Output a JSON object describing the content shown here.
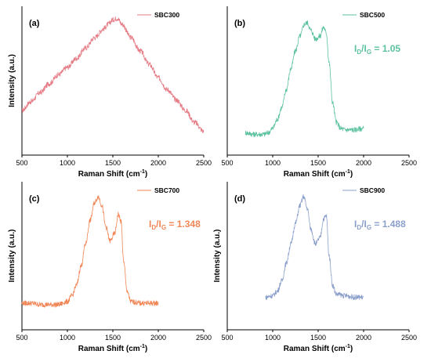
{
  "chart_data": [
    {
      "type": "line",
      "panel_label": "(a)",
      "xlabel": "Raman Shift (cm",
      "xlabel_sup": "-1",
      "xlabel_end": ")",
      "ylabel": "Intensity (a.u.)",
      "xlim": [
        500,
        2500
      ],
      "xticks": [
        "500",
        "1000",
        "1500",
        "2000",
        "2500"
      ],
      "ylim": [
        0,
        1
      ],
      "color": "#e57b85",
      "legend": "SBC300",
      "legend_position": "top-right",
      "ratio": null,
      "series": [
        {
          "x": [
            500,
            600,
            700,
            800,
            900,
            1000,
            1100,
            1200,
            1300,
            1400,
            1450,
            1500,
            1550,
            1600,
            1700,
            1800,
            1900,
            2000,
            2100,
            2200,
            2300,
            2400,
            2500
          ],
          "y": [
            0.3,
            0.36,
            0.42,
            0.48,
            0.54,
            0.59,
            0.65,
            0.72,
            0.79,
            0.85,
            0.88,
            0.91,
            0.92,
            0.88,
            0.79,
            0.7,
            0.61,
            0.52,
            0.44,
            0.37,
            0.3,
            0.22,
            0.16
          ]
        }
      ]
    },
    {
      "type": "line",
      "panel_label": "(b)",
      "xlabel": "Raman Shift (cm",
      "xlabel_sup": "-1",
      "xlabel_end": ")",
      "ylabel": "",
      "xlim": [
        500,
        2500
      ],
      "xticks": [
        "500",
        "1000",
        "1500",
        "2000",
        "2500"
      ],
      "ylim": [
        0,
        1
      ],
      "color": "#5cc1a0",
      "legend": "SBC500",
      "legend_position": "top-right",
      "ratio": {
        "I": "I",
        "D": "D",
        "slash": "/",
        "G": "G",
        "value": " = 1.05"
      },
      "series": [
        {
          "x": [
            700,
            800,
            900,
            950,
            1000,
            1050,
            1100,
            1150,
            1200,
            1250,
            1300,
            1350,
            1380,
            1420,
            1470,
            1520,
            1560,
            1590,
            1620,
            1660,
            1700,
            1750,
            1800,
            1900,
            2000
          ],
          "y": [
            0.15,
            0.14,
            0.14,
            0.15,
            0.18,
            0.24,
            0.32,
            0.44,
            0.58,
            0.7,
            0.8,
            0.88,
            0.89,
            0.84,
            0.78,
            0.8,
            0.86,
            0.82,
            0.62,
            0.35,
            0.22,
            0.18,
            0.17,
            0.17,
            0.18
          ]
        }
      ]
    },
    {
      "type": "line",
      "panel_label": "(c)",
      "xlabel": "Raman Shift (cm",
      "xlabel_sup": "-1",
      "xlabel_end": ")",
      "ylabel": "Intensity (a.u.)",
      "xlim": [
        500,
        2500
      ],
      "xticks": [
        "500",
        "1000",
        "1500",
        "2000",
        "2500"
      ],
      "ylim": [
        0,
        1
      ],
      "color": "#f08656",
      "legend": "SBC700",
      "legend_position": "top-right",
      "ratio": {
        "I": "I",
        "D": "D",
        "slash": "/",
        "G": "G",
        "value": " = 1.348"
      },
      "series": [
        {
          "x": [
            500,
            600,
            700,
            800,
            900,
            1000,
            1050,
            1100,
            1150,
            1200,
            1250,
            1300,
            1340,
            1380,
            1420,
            1470,
            1520,
            1560,
            1590,
            1620,
            1660,
            1700,
            1800,
            1900,
            2000
          ],
          "y": [
            0.18,
            0.18,
            0.17,
            0.17,
            0.17,
            0.19,
            0.23,
            0.3,
            0.43,
            0.58,
            0.74,
            0.86,
            0.9,
            0.84,
            0.7,
            0.6,
            0.65,
            0.78,
            0.73,
            0.45,
            0.25,
            0.19,
            0.18,
            0.18,
            0.18
          ]
        }
      ]
    },
    {
      "type": "line",
      "panel_label": "(d)",
      "xlabel": "Raman Shift (cm",
      "xlabel_sup": "-1",
      "xlabel_end": ")",
      "ylabel": "Intensity (a.u.)",
      "xlim": [
        500,
        2500
      ],
      "xticks": [
        "500",
        "1000",
        "1500",
        "2000",
        "2500"
      ],
      "ylim": [
        0,
        1
      ],
      "color": "#8b9fcb",
      "legend": "SBC900",
      "legend_position": "top-right",
      "ratio": {
        "I": "I",
        "D": "D",
        "slash": "/",
        "G": "G",
        "value": " = 1.488"
      },
      "series": [
        {
          "x": [
            920,
            1000,
            1050,
            1100,
            1150,
            1200,
            1250,
            1300,
            1340,
            1380,
            1420,
            1470,
            1520,
            1560,
            1590,
            1620,
            1660,
            1700,
            1800,
            1900,
            2000
          ],
          "y": [
            0.22,
            0.23,
            0.26,
            0.33,
            0.45,
            0.58,
            0.72,
            0.84,
            0.9,
            0.82,
            0.68,
            0.58,
            0.62,
            0.75,
            0.77,
            0.5,
            0.3,
            0.24,
            0.23,
            0.22,
            0.22
          ]
        }
      ]
    }
  ]
}
